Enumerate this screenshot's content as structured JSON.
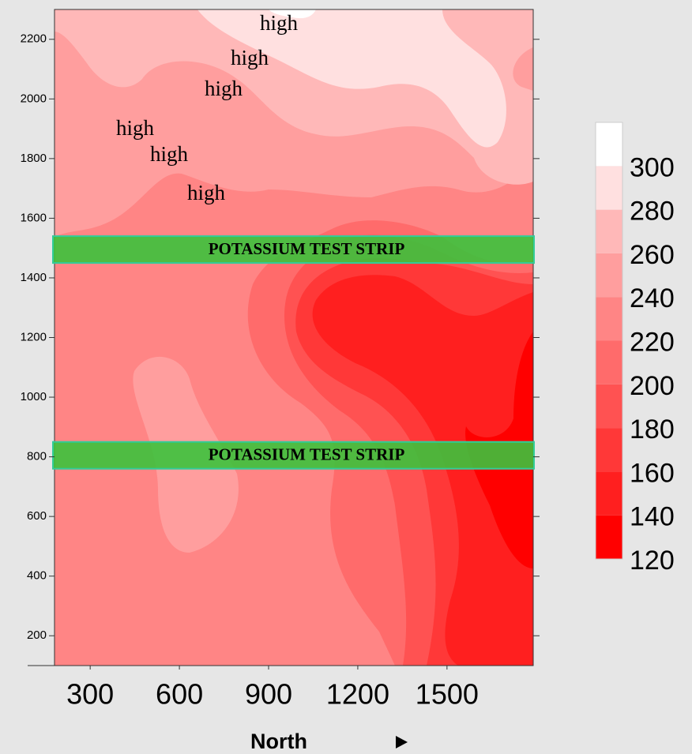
{
  "chart_data": {
    "type": "contour",
    "xlabel": "North",
    "xlim": [
      180,
      1790
    ],
    "xticks": [
      300,
      600,
      900,
      1200,
      1500
    ],
    "ylim": [
      100,
      2300
    ],
    "yticks": [
      200,
      400,
      600,
      800,
      1000,
      1200,
      1400,
      1600,
      1800,
      2000,
      2200
    ],
    "colorbar": {
      "clim": [
        120,
        320
      ],
      "ticks": [
        120,
        140,
        160,
        180,
        200,
        220,
        240,
        260,
        280,
        300
      ],
      "colors": [
        "#ff0000",
        "#ff1f1f",
        "#ff3838",
        "#ff5252",
        "#ff6b6b",
        "#ff8585",
        "#ff9e9e",
        "#ffb8b8",
        "#ffe0e0",
        "#ffffff"
      ]
    },
    "strips": [
      {
        "label": "POTASSIUM TEST STRIP",
        "y": [
          1450,
          1540
        ],
        "color": "#3cc23c"
      },
      {
        "label": "POTASSIUM TEST STRIP",
        "y": [
          760,
          850
        ],
        "color": "#3cc23c"
      }
    ],
    "annotations": [
      "high",
      "high",
      "high",
      "high",
      "high",
      "high"
    ]
  }
}
